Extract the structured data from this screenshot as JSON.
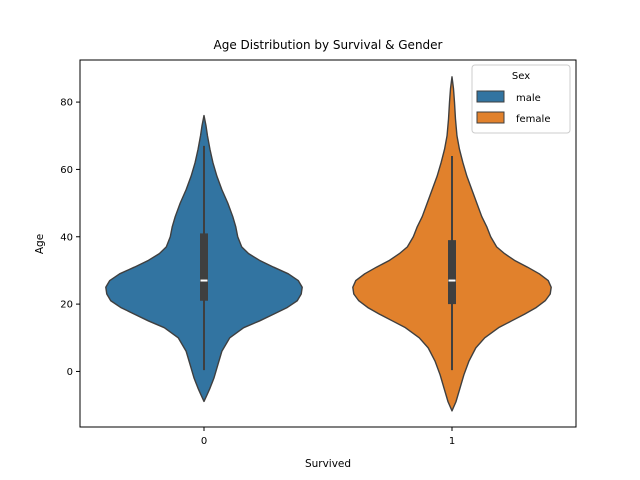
{
  "chart_data": {
    "type": "violin",
    "title": "Age Distribution by Survival & Gender",
    "xlabel": "Survived",
    "ylabel": "Age",
    "categories": [
      "0",
      "1"
    ],
    "ylim": [
      -16.5,
      92.5
    ],
    "yticks": [
      0,
      20,
      40,
      60,
      80
    ],
    "grid": false,
    "legend": {
      "title": "Sex",
      "placement": "top-right"
    },
    "series": [
      {
        "name": "male",
        "color": "#3274a1",
        "category": "0",
        "box": {
          "min": 0.4,
          "q1": 21,
          "median": 27,
          "q3": 41,
          "max": 67
        },
        "density": [
          [
            -8.9,
            0
          ],
          [
            -7,
            0.03
          ],
          [
            -5,
            0.06
          ],
          [
            -2,
            0.1
          ],
          [
            2,
            0.14
          ],
          [
            6,
            0.18
          ],
          [
            10,
            0.26
          ],
          [
            13,
            0.4
          ],
          [
            15,
            0.56
          ],
          [
            17,
            0.7
          ],
          [
            19,
            0.84
          ],
          [
            21,
            0.94
          ],
          [
            23,
            0.98
          ],
          [
            25,
            0.99
          ],
          [
            27,
            0.95
          ],
          [
            29,
            0.85
          ],
          [
            31,
            0.7
          ],
          [
            33,
            0.56
          ],
          [
            35,
            0.45
          ],
          [
            37,
            0.38
          ],
          [
            40,
            0.34
          ],
          [
            43,
            0.32
          ],
          [
            46,
            0.29
          ],
          [
            50,
            0.24
          ],
          [
            54,
            0.18
          ],
          [
            58,
            0.13
          ],
          [
            62,
            0.09
          ],
          [
            66,
            0.06
          ],
          [
            70,
            0.035
          ],
          [
            73,
            0.02
          ],
          [
            76,
            0
          ]
        ]
      },
      {
        "name": "female",
        "color": "#e1812c",
        "category": "1",
        "box": {
          "min": 0.4,
          "q1": 20,
          "median": 27,
          "q3": 39,
          "max": 64
        },
        "density": [
          [
            -11.7,
            0
          ],
          [
            -9,
            0.04
          ],
          [
            -5,
            0.08
          ],
          [
            -1,
            0.12
          ],
          [
            3,
            0.17
          ],
          [
            7,
            0.24
          ],
          [
            10,
            0.33
          ],
          [
            13,
            0.47
          ],
          [
            15,
            0.6
          ],
          [
            17,
            0.73
          ],
          [
            19,
            0.85
          ],
          [
            21,
            0.94
          ],
          [
            23,
            0.99
          ],
          [
            25,
            1.0
          ],
          [
            27,
            0.97
          ],
          [
            29,
            0.88
          ],
          [
            31,
            0.76
          ],
          [
            33,
            0.63
          ],
          [
            35,
            0.53
          ],
          [
            37,
            0.45
          ],
          [
            40,
            0.39
          ],
          [
            43,
            0.35
          ],
          [
            46,
            0.3
          ],
          [
            50,
            0.25
          ],
          [
            54,
            0.2
          ],
          [
            58,
            0.15
          ],
          [
            62,
            0.11
          ],
          [
            66,
            0.075
          ],
          [
            70,
            0.05
          ],
          [
            75,
            0.035
          ],
          [
            80,
            0.025
          ],
          [
            84,
            0.015
          ],
          [
            87.5,
            0
          ]
        ]
      }
    ]
  }
}
